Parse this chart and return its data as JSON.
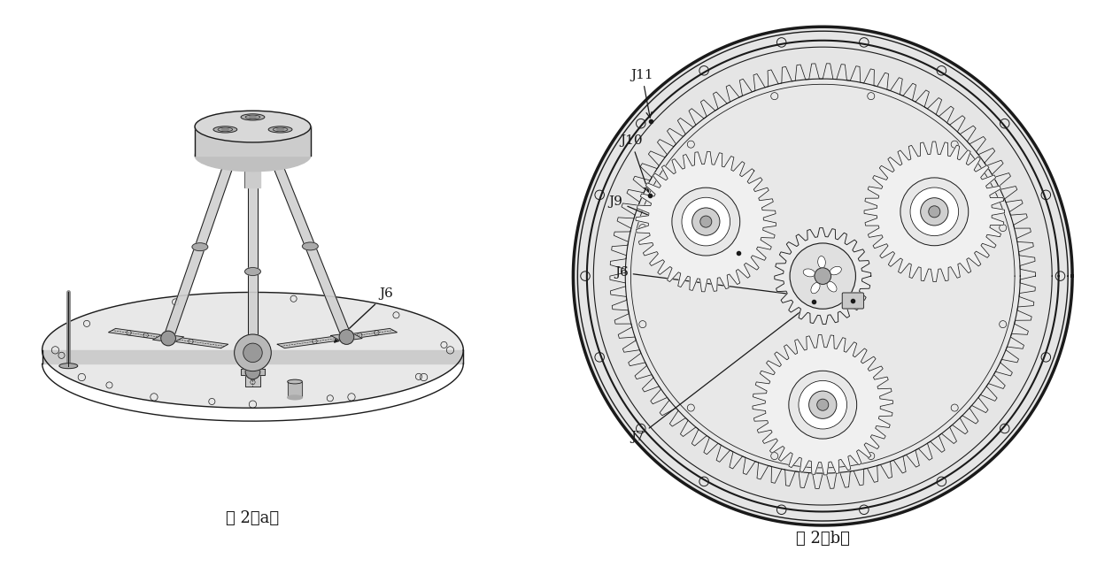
{
  "title_a": "图 2（a）",
  "title_b": "图 2（b）",
  "label_j6": "J6",
  "label_j7": "J7",
  "label_j9": "J9",
  "label_j10": "J10",
  "label_j11": "J11",
  "bg_color": "#ffffff",
  "line_color": "#1a1a1a",
  "fig_width": 12.39,
  "fig_height": 6.49,
  "dpi": 100
}
